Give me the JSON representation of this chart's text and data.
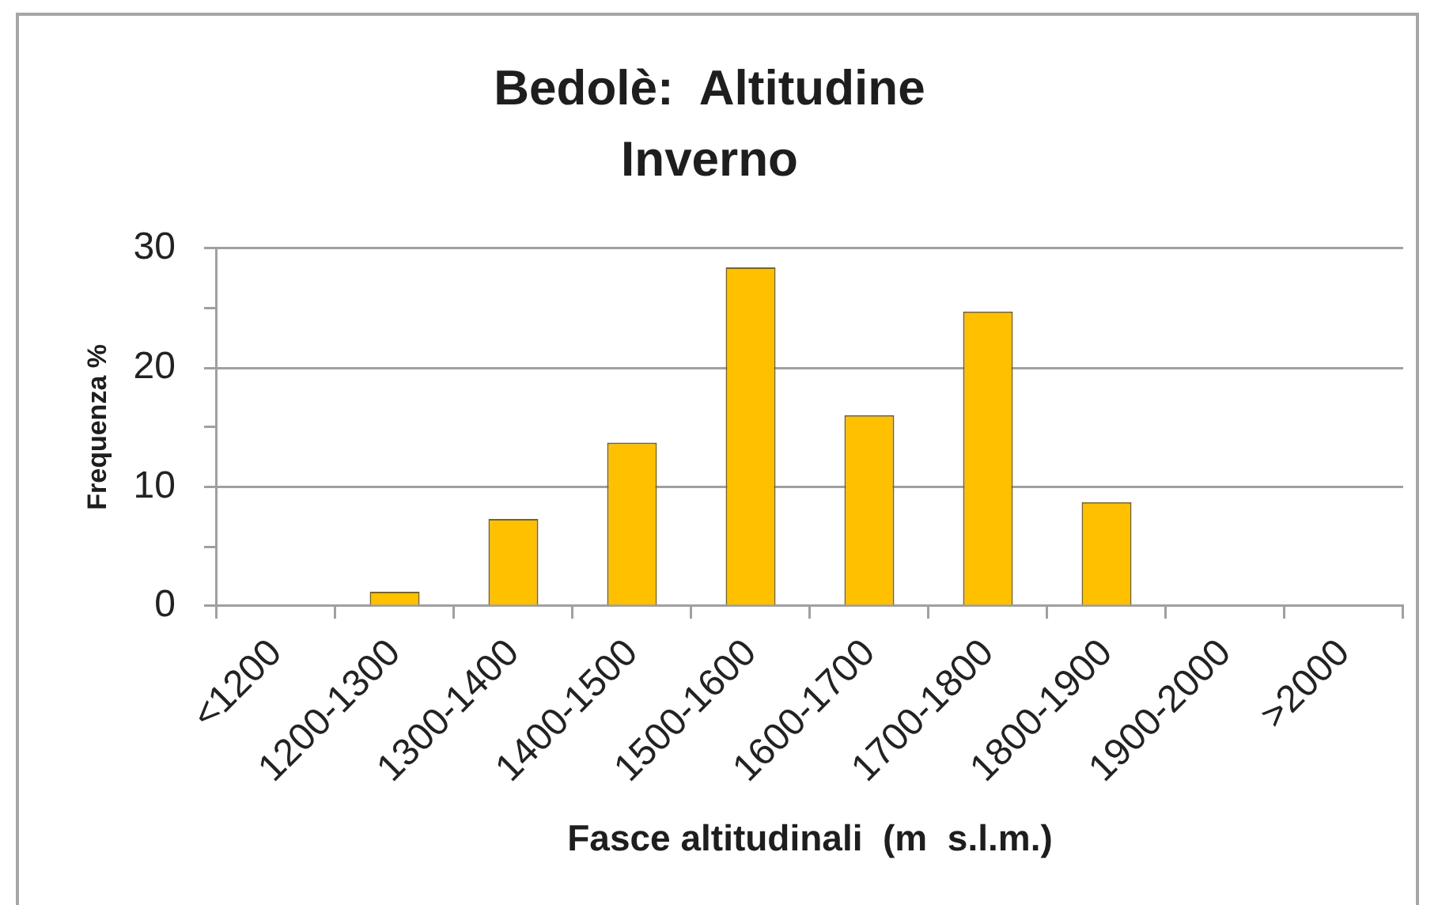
{
  "chart_data": {
    "type": "bar",
    "title": "Bedolè:  Altitudine\nInverno",
    "xlabel": "Fasce altitudinali  (m  s.l.m.)",
    "ylabel": "Frequenza %",
    "categories": [
      "<1200",
      "1200-1300",
      "1300-1400",
      "1400-1500",
      "1500-1600",
      "1600-1700",
      "1700-1800",
      "1800-1900",
      "1900-2000",
      ">2000"
    ],
    "values": [
      0,
      1.2,
      7.3,
      13.7,
      28.4,
      16.0,
      24.7,
      8.7,
      0,
      0
    ],
    "color": "#ffc000",
    "ylim": [
      0,
      30
    ],
    "yticks": [
      0,
      {
        "value": 5,
        "label": null
      },
      10,
      {
        "value": 15,
        "label": null
      },
      20,
      {
        "value": 25,
        "label": null
      },
      30
    ],
    "grid": "y"
  }
}
